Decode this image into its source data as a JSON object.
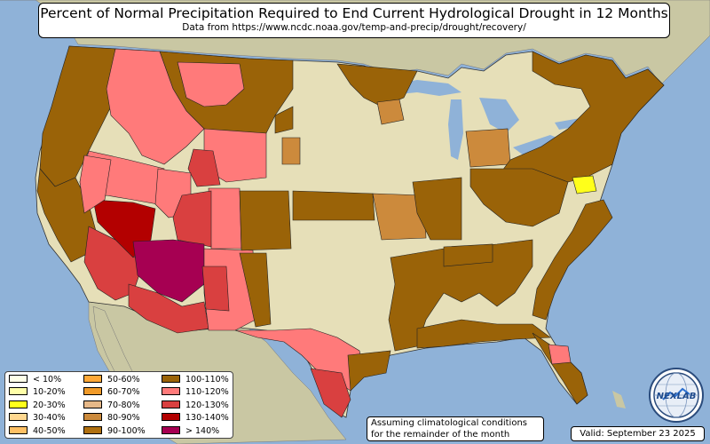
{
  "title": "Percent of Normal Precipitation Required to End Current Hydrological Drought in 12 Months",
  "subtitle": "Data from https://www.ncdc.noaa.gov/temp-and-precip/drought/recovery/",
  "note_line1": "Assuming climatological conditions",
  "note_line2": "for the remainder of the month",
  "valid": "Valid: September 23 2025",
  "logo_text": "NEXLAB",
  "colors": {
    "water": "#8fb2d8",
    "land_neutral": "#e6dfb8",
    "foreign_land": "#c8c4a0",
    "border": "#1a1a1a"
  },
  "legend": [
    {
      "label": "< 10%",
      "color": "#ffffe8"
    },
    {
      "label": "10-20%",
      "color": "#ffffa8"
    },
    {
      "label": "20-30%",
      "color": "#ffff1a"
    },
    {
      "label": "30-40%",
      "color": "#ffd890"
    },
    {
      "label": "40-50%",
      "color": "#ffc064"
    },
    {
      "label": "50-60%",
      "color": "#ffa838"
    },
    {
      "label": "60-70%",
      "color": "#f09a28"
    },
    {
      "label": "70-80%",
      "color": "#e6b888"
    },
    {
      "label": "80-90%",
      "color": "#cc8a3c"
    },
    {
      "label": "90-100%",
      "color": "#b07010"
    },
    {
      "label": "100-110%",
      "color": "#9a6308"
    },
    {
      "label": "110-120%",
      "color": "#ff7a7a"
    },
    {
      "label": "120-130%",
      "color": "#d94040"
    },
    {
      "label": "130-140%",
      "color": "#b30000"
    },
    {
      "label": "> 140%",
      "color": "#a60052"
    }
  ]
}
